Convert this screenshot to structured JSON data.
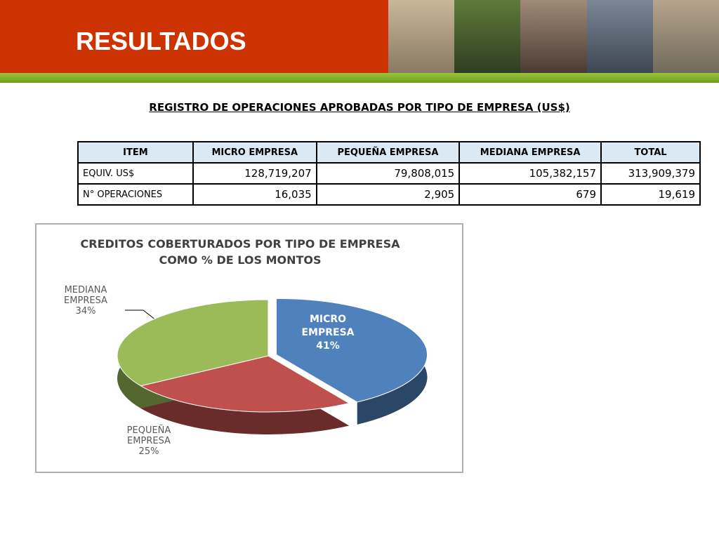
{
  "header": {
    "title": "RESULTADOS"
  },
  "table": {
    "title": "REGISTRO DE OPERACIONES APROBADAS POR TIPO DE EMPRESA (US$)",
    "header": [
      "ITEM",
      "MICRO EMPRESA",
      "PEQUEÑA EMPRESA",
      "MEDIANA EMPRESA",
      "TOTAL"
    ],
    "rows": [
      [
        "EQUIV. US$",
        "128,719,207",
        "79,808,015",
        "105,382,157",
        "313,909,379"
      ],
      [
        "N° OPERACIONES",
        "16,035",
        "2,905",
        "679",
        "19,619"
      ]
    ]
  },
  "chart_data": {
    "type": "pie",
    "title": "CREDITOS COBERTURADOS POR TIPO DE EMPRESA COMO % DE LOS MONTOS",
    "categories": [
      "MICRO EMPRESA",
      "PEQUEÑA EMPRESA",
      "MEDIANA EMPRESA"
    ],
    "values": [
      41,
      25,
      34
    ],
    "value_labels": [
      "41%",
      "25%",
      "34%"
    ],
    "colors": [
      "#4f81bd",
      "#c0504d",
      "#9bbb59"
    ]
  }
}
